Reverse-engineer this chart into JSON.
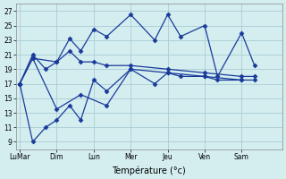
{
  "xlabel": "Température (°c)",
  "background_color": "#d4eef0",
  "grid_color": "#aaccd4",
  "line_color": "#1a3a9a",
  "yticks": [
    9,
    11,
    13,
    15,
    17,
    19,
    21,
    23,
    25,
    27
  ],
  "ylim": [
    8,
    28
  ],
  "xlim": [
    -0.1,
    7.1
  ],
  "xtick_labels": [
    "LuMar",
    "Dim",
    "Lun",
    "Mer",
    "Jeu",
    "Ven",
    "Sam"
  ],
  "xtick_positions": [
    0,
    1,
    2,
    3,
    4,
    5,
    6
  ],
  "series1_x": [
    0,
    0.35,
    0.7,
    1.0,
    1.35,
    1.65,
    2.0,
    2.35,
    3.0,
    3.65,
    4.0,
    4.35,
    5.0,
    5.35,
    6.0,
    6.35
  ],
  "series1_y": [
    17,
    21,
    19,
    20,
    23.2,
    21.5,
    24.5,
    23.5,
    26.5,
    23.0,
    26.5,
    23.5,
    25.0,
    18.0,
    24.0,
    19.5
  ],
  "series2_x": [
    0,
    0.35,
    0.7,
    1.0,
    1.35,
    1.65,
    2.0,
    2.35,
    3.0,
    3.65,
    4.0,
    4.35,
    5.0,
    5.35,
    6.0,
    6.35
  ],
  "series2_y": [
    17,
    9,
    11,
    12,
    14,
    12,
    17.5,
    16.0,
    19.0,
    17.0,
    18.5,
    18.0,
    18.0,
    17.5,
    17.5,
    17.5
  ],
  "series3_x": [
    0,
    0.35,
    1.0,
    1.65,
    2.35,
    3.0,
    4.0,
    5.0,
    6.0
  ],
  "series3_y": [
    17,
    20.5,
    13.5,
    15.5,
    14.0,
    19.0,
    18.5,
    18.0,
    17.5
  ],
  "series4_x": [
    0,
    0.35,
    1.0,
    1.35,
    1.65,
    2.0,
    2.35,
    3.0,
    4.0,
    5.0,
    6.0,
    6.35
  ],
  "series4_y": [
    17,
    20.5,
    20.0,
    21.5,
    20.0,
    20.0,
    19.5,
    19.5,
    19.0,
    18.5,
    18.0,
    18.0
  ]
}
